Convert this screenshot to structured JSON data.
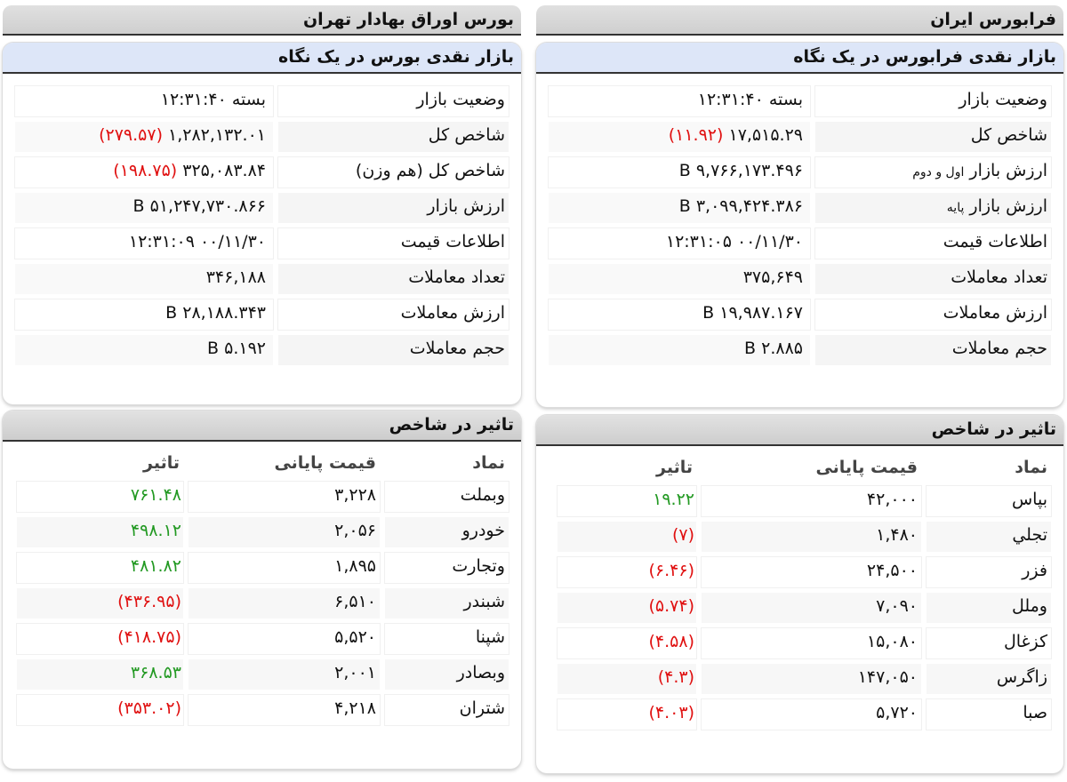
{
  "colors": {
    "negative": "#e01010",
    "positive": "#229922",
    "panel_header": "#dde6f8"
  },
  "tse": {
    "title": "بورس اوراق بهادار تهران",
    "summary_title": "بازار نقدی بورس در یک نگاه",
    "rows": [
      {
        "label": "وضعیت بازار",
        "value": "بسته ۱۲:۳۱:۴۰"
      },
      {
        "label": "شاخص کل",
        "value": "۱,۲۸۲,۱۳۲.۰۱",
        "change": "(۲۷۹.۵۷)"
      },
      {
        "label": "شاخص کل (هم وزن)",
        "value": "۳۲۵,۰۸۳.۸۴",
        "change": "(۱۹۸.۷۵)"
      },
      {
        "label": "ارزش بازار",
        "value": "۵۱,۲۴۷,۷۳۰.۸۶۶ B"
      },
      {
        "label": "اطلاعات قیمت",
        "value": "۰۰/۱۱/۳۰ ۱۲:۳۱:۰۹"
      },
      {
        "label": "تعداد معاملات",
        "value": "۳۴۶,۱۸۸"
      },
      {
        "label": "ارزش معاملات",
        "value": "۲۸,۱۸۸.۳۴۳ B"
      },
      {
        "label": "حجم معاملات",
        "value": "۵.۱۹۲ B"
      }
    ],
    "impact_title": "تاثیر در شاخص",
    "impact_headers": [
      "نماد",
      "قیمت پایانی",
      "تاثیر"
    ],
    "impact_rows": [
      {
        "symbol": "وبملت",
        "price": "۳,۲۲۸",
        "impact": "۷۶۱.۴۸",
        "dir": "pos"
      },
      {
        "symbol": "خودرو",
        "price": "۲,۰۵۶",
        "impact": "۴۹۸.۱۲",
        "dir": "pos"
      },
      {
        "symbol": "وتجارت",
        "price": "۱,۸۹۵",
        "impact": "۴۸۱.۸۲",
        "dir": "pos"
      },
      {
        "symbol": "شبندر",
        "price": "۶,۵۱۰",
        "impact": "(۴۳۶.۹۵)",
        "dir": "neg"
      },
      {
        "symbol": "شپنا",
        "price": "۵,۵۲۰",
        "impact": "(۴۱۸.۷۵)",
        "dir": "neg"
      },
      {
        "symbol": "وبصادر",
        "price": "۲,۰۰۱",
        "impact": "۳۶۸.۵۳",
        "dir": "pos"
      },
      {
        "symbol": "شتران",
        "price": "۴,۲۱۸",
        "impact": "(۳۵۳.۰۲)",
        "dir": "neg"
      }
    ]
  },
  "ifb": {
    "title": "فرابورس ایران",
    "summary_title": "بازار نقدی فرابورس در یک نگاه",
    "rows": [
      {
        "label": "وضعیت بازار",
        "value": "بسته ۱۲:۳۱:۴۰"
      },
      {
        "label": "شاخص کل",
        "value": "۱۷,۵۱۵.۲۹",
        "change": "(۱۱.۹۲)"
      },
      {
        "label": "ارزش بازار",
        "sub": "اول و دوم",
        "value": "۹,۷۶۶,۱۷۳.۴۹۶ B"
      },
      {
        "label": "ارزش بازار",
        "sub": "پایه",
        "value": "۳,۰۹۹,۴۲۴.۳۸۶ B"
      },
      {
        "label": "اطلاعات قیمت",
        "value": "۰۰/۱۱/۳۰ ۱۲:۳۱:۰۵"
      },
      {
        "label": "تعداد معاملات",
        "value": "۳۷۵,۶۴۹"
      },
      {
        "label": "ارزش معاملات",
        "value": "۱۹,۹۸۷.۱۶۷ B"
      },
      {
        "label": "حجم معاملات",
        "value": "۲.۸۸۵ B"
      }
    ],
    "impact_title": "تاثیر در شاخص",
    "impact_headers": [
      "نماد",
      "قیمت پایانی",
      "تاثیر"
    ],
    "impact_rows": [
      {
        "symbol": "بپاس",
        "price": "۴۲,۰۰۰",
        "impact": "۱۹.۲۲",
        "dir": "pos"
      },
      {
        "symbol": "تجلي",
        "price": "۱,۴۸۰",
        "impact": "(۷)",
        "dir": "neg"
      },
      {
        "symbol": "فزر",
        "price": "۲۴,۵۰۰",
        "impact": "(۶.۴۶)",
        "dir": "neg"
      },
      {
        "symbol": "وملل",
        "price": "۷,۰۹۰",
        "impact": "(۵.۷۴)",
        "dir": "neg"
      },
      {
        "symbol": "کزغال",
        "price": "۱۵,۰۸۰",
        "impact": "(۴.۵۸)",
        "dir": "neg"
      },
      {
        "symbol": "زاگرس",
        "price": "۱۴۷,۰۵۰",
        "impact": "(۴.۳)",
        "dir": "neg"
      },
      {
        "symbol": "صبا",
        "price": "۵,۷۲۰",
        "impact": "(۴.۰۳)",
        "dir": "neg"
      }
    ]
  }
}
